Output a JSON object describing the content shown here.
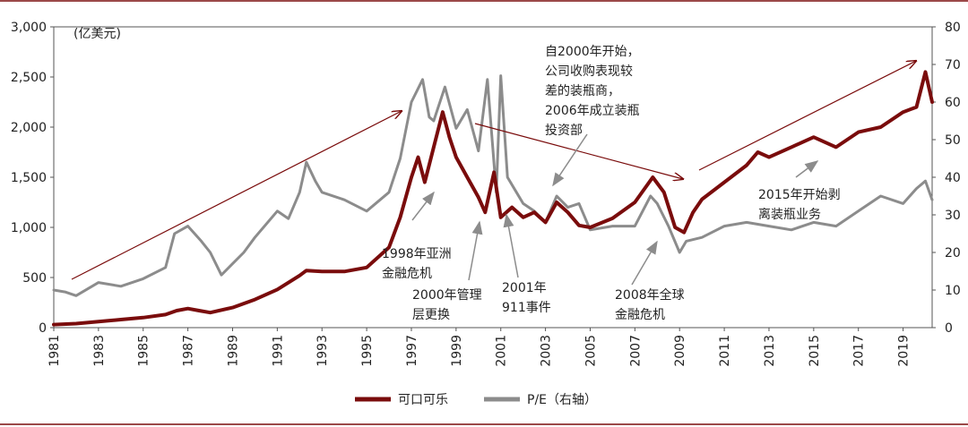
{
  "chart_data": {
    "type": "line",
    "title": "",
    "unit_label": "(亿美元)",
    "x_ticks": [
      "1981",
      "1983",
      "1985",
      "1987",
      "1989",
      "1991",
      "1993",
      "1995",
      "1997",
      "1999",
      "2001",
      "2003",
      "2005",
      "2007",
      "2009",
      "2011",
      "2013",
      "2015",
      "2017",
      "2019"
    ],
    "xlim": [
      1981,
      2020.3
    ],
    "y_left": {
      "ylim": [
        0,
        3000
      ],
      "ticks": [
        "0",
        "500",
        "1,000",
        "1,500",
        "2,000",
        "2,500",
        "3,000"
      ]
    },
    "y_right": {
      "ylim": [
        0,
        80
      ],
      "ticks": [
        "0",
        "10",
        "20",
        "30",
        "40",
        "50",
        "60",
        "70",
        "80"
      ]
    },
    "series": [
      {
        "name": "可口可乐",
        "axis": "left",
        "color": "#7a0c0c",
        "x": [
          1981,
          1982,
          1983,
          1984,
          1985,
          1986,
          1986.5,
          1987,
          1987.5,
          1988,
          1989,
          1990,
          1991,
          1992,
          1992.3,
          1993,
          1994,
          1995,
          1996,
          1996.5,
          1997,
          1997.3,
          1997.6,
          1998,
          1998.4,
          1998.7,
          1999,
          1999.5,
          2000,
          2000.3,
          2000.7,
          2001,
          2001.5,
          2002,
          2002.5,
          2003,
          2003.5,
          2004,
          2004.5,
          2005,
          2006,
          2007,
          2007.8,
          2008.3,
          2008.8,
          2009.2,
          2009.6,
          2010,
          2011,
          2012,
          2012.5,
          2013,
          2014,
          2015,
          2016,
          2017,
          2018,
          2019,
          2019.6,
          2020,
          2020.3
        ],
        "values": [
          30,
          40,
          60,
          80,
          100,
          130,
          170,
          190,
          170,
          150,
          200,
          280,
          380,
          520,
          570,
          560,
          560,
          600,
          800,
          1100,
          1500,
          1700,
          1450,
          1800,
          2150,
          1900,
          1700,
          1500,
          1300,
          1150,
          1550,
          1100,
          1200,
          1100,
          1150,
          1050,
          1250,
          1150,
          1020,
          1000,
          1090,
          1250,
          1500,
          1350,
          1000,
          950,
          1150,
          1280,
          1450,
          1620,
          1750,
          1700,
          1800,
          1900,
          1800,
          1950,
          2000,
          2150,
          2200,
          2550,
          2250
        ]
      },
      {
        "name": "P/E (右轴)",
        "axis": "right",
        "color": "#8c8c8c",
        "x": [
          1981,
          1981.5,
          1982,
          1983,
          1984,
          1985,
          1986,
          1986.4,
          1987,
          1987.6,
          1988,
          1988.5,
          1989,
          1989.5,
          1990,
          1991,
          1991.5,
          1992,
          1992.3,
          1992.7,
          1993,
          1994,
          1995,
          1996,
          1996.5,
          1997,
          1997.5,
          1997.8,
          1998,
          1998.5,
          1999,
          1999.5,
          2000,
          2000.4,
          2000.8,
          2001,
          2001.3,
          2001.7,
          2002,
          2002.5,
          2003,
          2003.5,
          2004,
          2004.5,
          2005,
          2006,
          2007,
          2007.7,
          2008,
          2008.5,
          2009,
          2009.3,
          2010,
          2011,
          2012,
          2013,
          2014,
          2015,
          2016,
          2017,
          2018,
          2019,
          2019.6,
          2020,
          2020.3
        ],
        "values": [
          10,
          9.5,
          8.5,
          12,
          11,
          13,
          16,
          25,
          27,
          23,
          20,
          14,
          17,
          20,
          24,
          31,
          29,
          36,
          44,
          39,
          36,
          34,
          31,
          36,
          45,
          60,
          66,
          56,
          55,
          64,
          53,
          58,
          47,
          66,
          36,
          67,
          40,
          36,
          33,
          31,
          28,
          35,
          32,
          33,
          26,
          27,
          27,
          35,
          33,
          27,
          20,
          23,
          24,
          27,
          28,
          27,
          26,
          28,
          27,
          31,
          35,
          33,
          37,
          39,
          34
        ]
      }
    ],
    "annotations": [
      "自2000年开始，",
      "公司收购表现较",
      "差的装瓶商，",
      "2006年成立装瓶",
      "投资部",
      "1998年亚洲",
      "金融危机",
      "2000年管理",
      "层更换",
      "2001年",
      "911事件",
      "2008年全球",
      "金融危机",
      "2015年开始剥",
      "离装瓶业务"
    ],
    "legend": [
      "可口可乐",
      "P/E（右轴）"
    ],
    "legend_position": "bottom-center"
  }
}
